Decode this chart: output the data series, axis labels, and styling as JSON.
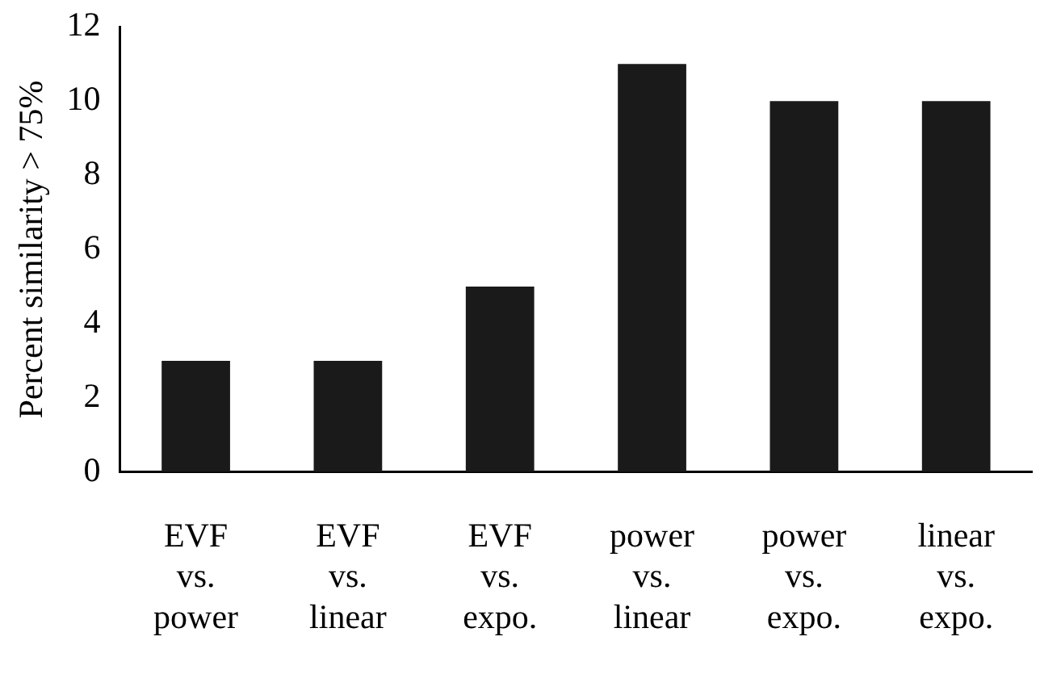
{
  "chart_data": {
    "type": "bar",
    "ylabel": "Percent similarity > 75%",
    "categories": [
      "EVF vs. power",
      "EVF vs. linear",
      "EVF vs. expo.",
      "power vs. linear",
      "power vs. expo.",
      "linear vs. expo."
    ],
    "values": [
      3,
      3,
      5,
      11,
      10,
      10
    ],
    "color": "#1a1a1a",
    "ylim": [
      0,
      12
    ],
    "yticks": [
      0,
      2,
      4,
      6,
      8,
      10,
      12
    ],
    "grid": false,
    "legend": false
  }
}
